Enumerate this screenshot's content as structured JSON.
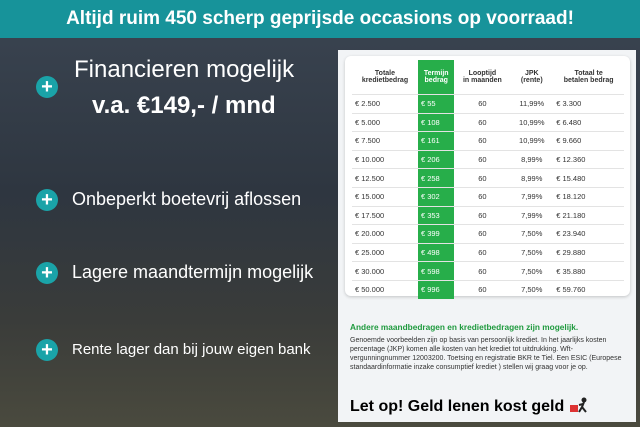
{
  "banner": "Altijd ruim 450 scherp geprijsde occasions op voorraad!",
  "headline": {
    "line1": "Financieren mogelijk",
    "line2": "v.a. €149,- / mnd"
  },
  "bullets": [
    "Onbeperkt boetevrij aflossen",
    "Lagere maandtermijn mogelijk",
    "Rente lager dan bij jouw eigen bank"
  ],
  "table": {
    "header": [
      [
        "Totale",
        "kredietbedrag"
      ],
      [
        "Termijn",
        "bedrag"
      ],
      [
        "Looptijd",
        "in maanden"
      ],
      [
        "JPK",
        "(rente)"
      ],
      [
        "Totaal te",
        "betalen bedrag"
      ]
    ],
    "rows": [
      [
        "€ 2.500",
        "€ 55",
        "60",
        "11,99%",
        "€ 3.300"
      ],
      [
        "€ 5.000",
        "€ 108",
        "60",
        "10,99%",
        "€ 6.480"
      ],
      [
        "€ 7.500",
        "€ 161",
        "60",
        "10,99%",
        "€ 9.660"
      ],
      [
        "€ 10.000",
        "€ 206",
        "60",
        "8,99%",
        "€ 12.360"
      ],
      [
        "€ 12.500",
        "€ 258",
        "60",
        "8,99%",
        "€ 15.480"
      ],
      [
        "€ 15.000",
        "€ 302",
        "60",
        "7,99%",
        "€ 18.120"
      ],
      [
        "€ 17.500",
        "€ 353",
        "60",
        "7,99%",
        "€ 21.180"
      ],
      [
        "€ 20.000",
        "€ 399",
        "60",
        "7,50%",
        "€ 23.940"
      ],
      [
        "€ 25.000",
        "€ 498",
        "60",
        "7,50%",
        "€ 29.880"
      ],
      [
        "€ 30.000",
        "€ 598",
        "60",
        "7,50%",
        "€ 35.880"
      ],
      [
        "€ 50.000",
        "€ 996",
        "60",
        "7,50%",
        "€ 59.760"
      ]
    ]
  },
  "note_heading": "Andere maandbedragen en kredietbedragen zijn mogelijk.",
  "note": "Genoemde voorbeelden zijn op basis van persoonlijk krediet. In het jaarlijks kosten percentage (JKP) komen alle kosten van het krediet tot uitdrukking. Wft-vergunningnummer 12003200. Toetsing en registratie BKR te Tiel. Een ESIC (Europese standaardinformatie inzake consumptief krediet ) stellen wij graag voor je op.",
  "warning": "Let op! Geld lenen kost geld"
}
